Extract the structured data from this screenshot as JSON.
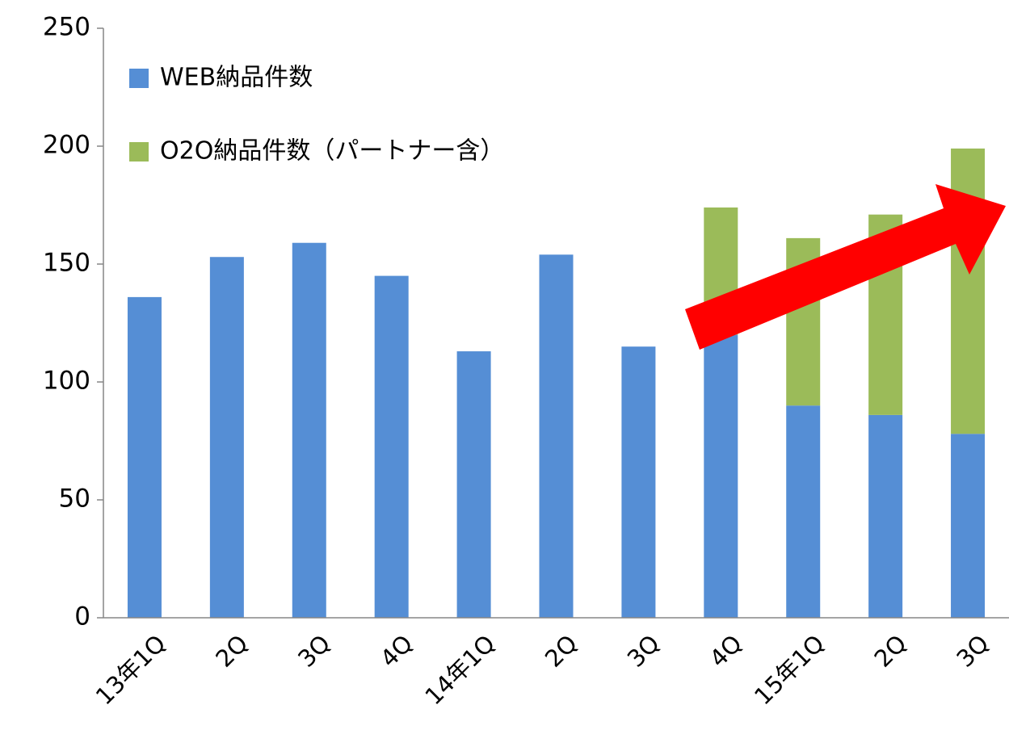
{
  "chart_data": {
    "type": "bar",
    "stacked": true,
    "categories": [
      "13年1Q",
      "2Q",
      "3Q",
      "4Q",
      "14年1Q",
      "2Q",
      "3Q",
      "4Q",
      "15年1Q",
      "2Q",
      "3Q"
    ],
    "series": [
      {
        "name": "WEB納品件数",
        "color": "#558ed5",
        "values": [
          136,
          153,
          159,
          145,
          113,
          154,
          115,
          120,
          90,
          86,
          78
        ]
      },
      {
        "name": "O2O納品件数（パートナー含）",
        "color": "#9bbb59",
        "values": [
          0,
          0,
          0,
          0,
          0,
          0,
          0,
          54,
          71,
          85,
          121
        ]
      }
    ],
    "ylim": [
      0,
      250
    ],
    "yticks": [
      0,
      50,
      100,
      150,
      200,
      250
    ],
    "grid": false,
    "legend": "upper left"
  }
}
